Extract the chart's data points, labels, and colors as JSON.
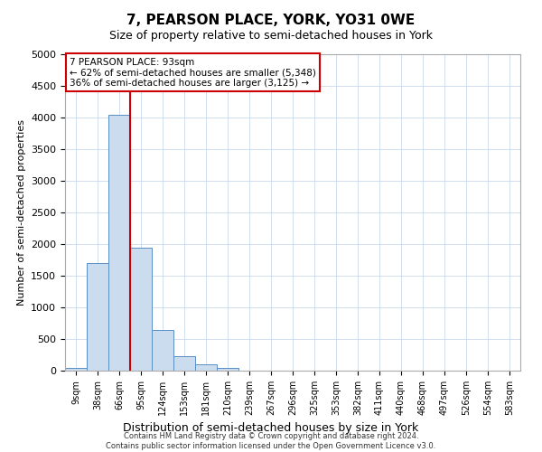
{
  "title": "7, PEARSON PLACE, YORK, YO31 0WE",
  "subtitle": "Size of property relative to semi-detached houses in York",
  "xlabel": "Distribution of semi-detached houses by size in York",
  "ylabel": "Number of semi-detached properties",
  "bar_labels": [
    "9sqm",
    "38sqm",
    "66sqm",
    "95sqm",
    "124sqm",
    "153sqm",
    "181sqm",
    "210sqm",
    "239sqm",
    "267sqm",
    "296sqm",
    "325sqm",
    "353sqm",
    "382sqm",
    "411sqm",
    "440sqm",
    "468sqm",
    "497sqm",
    "526sqm",
    "554sqm",
    "583sqm"
  ],
  "bar_values": [
    50,
    1700,
    4050,
    1950,
    650,
    230,
    100,
    50,
    0,
    0,
    0,
    0,
    0,
    0,
    0,
    0,
    0,
    0,
    0,
    0,
    0
  ],
  "bar_color": "#ccdcef",
  "bar_edge_color": "#5b8ec4",
  "property_sqm": 93,
  "pct_smaller": 62,
  "n_smaller": "5,348",
  "pct_larger": 36,
  "n_larger": "3,125",
  "annotation_line1": "7 PEARSON PLACE: 93sqm",
  "annotation_line2": "← 62% of semi-detached houses are smaller (5,348)",
  "annotation_line3": "36% of semi-detached houses are larger (3,125) →",
  "ylim": [
    0,
    5000
  ],
  "yticks": [
    0,
    500,
    1000,
    1500,
    2000,
    2500,
    3000,
    3500,
    4000,
    4500,
    5000
  ],
  "background_color": "#ffffff",
  "grid_color": "#c8d8ea",
  "annotation_box_color": "#ffffff",
  "annotation_box_edge": "#cc0000",
  "line_color": "#cc0000",
  "title_fontsize": 11,
  "subtitle_fontsize": 9,
  "footer_line1": "Contains HM Land Registry data © Crown copyright and database right 2024.",
  "footer_line2": "Contains public sector information licensed under the Open Government Licence v3.0."
}
